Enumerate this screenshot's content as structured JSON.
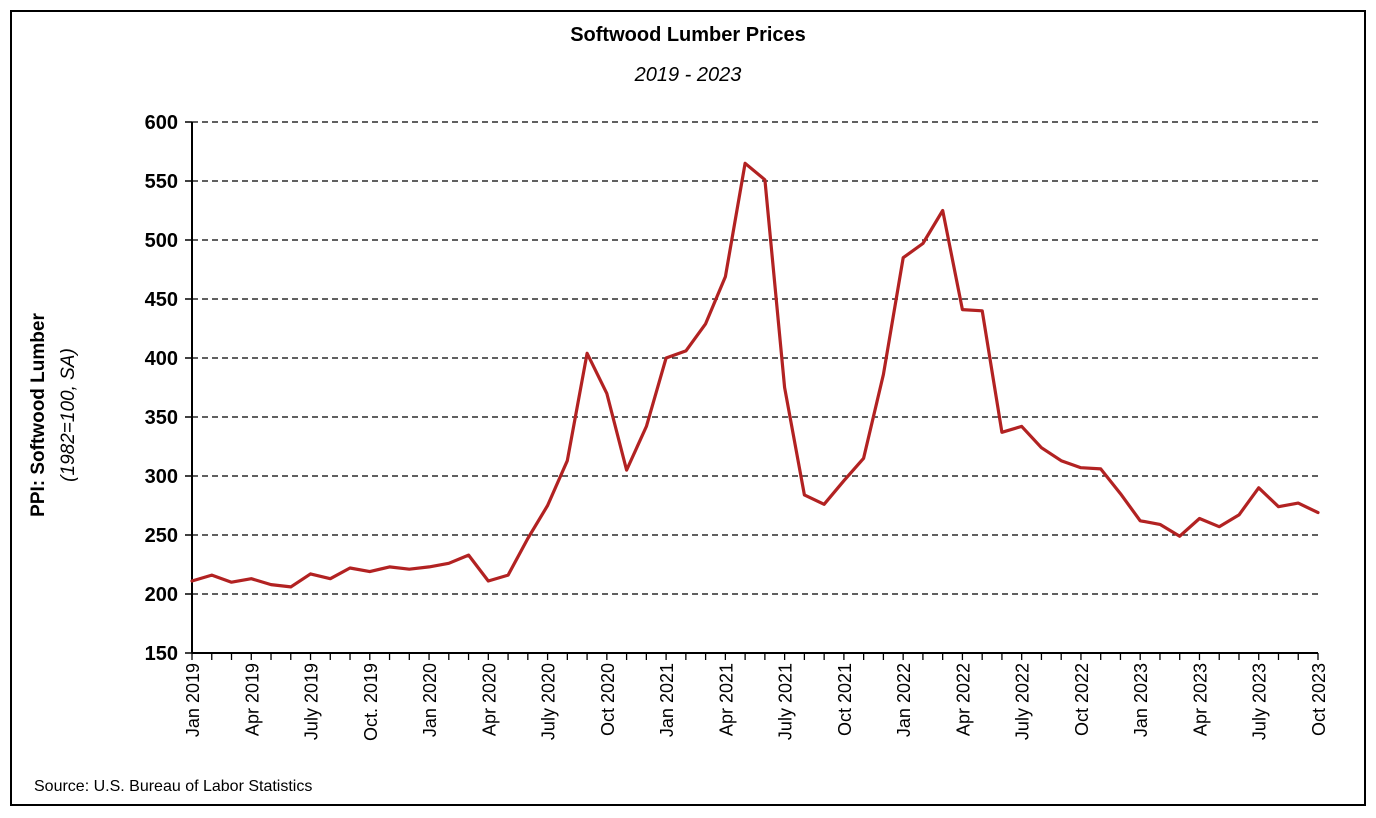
{
  "chart_data": {
    "type": "line",
    "title": "Softwood Lumber Prices",
    "subtitle": "2019 - 2023",
    "ylabel": "PPI: Softwood Lumber",
    "ylabel_sub": "(1982=100, SA)",
    "xlabel": "",
    "source": "Source: U.S. Bureau of Labor Statistics",
    "ylim": [
      150,
      600
    ],
    "yticks": [
      150,
      200,
      250,
      300,
      350,
      400,
      450,
      500,
      550,
      600
    ],
    "grid": true,
    "line_color": "#b22222",
    "x_tick_labels": [
      "Jan 2019",
      "Apr 2019",
      "July 2019",
      "Oct. 2019",
      "Jan 2020",
      "Apr 2020",
      "July 2020",
      "Oct 2020",
      "Jan 2021",
      "Apr 2021",
      "July 2021",
      "Oct 2021",
      "Jan 2022",
      "Apr 2022",
      "July 2022",
      "Oct 2022",
      "Jan 2023",
      "Apr 2023",
      "July 2023",
      "Oct 2023"
    ],
    "series": [
      {
        "x": [
          "2019-01",
          "2019-02",
          "2019-03",
          "2019-04",
          "2019-05",
          "2019-06",
          "2019-07",
          "2019-08",
          "2019-09",
          "2019-10",
          "2019-11",
          "2019-12",
          "2020-01",
          "2020-02",
          "2020-03",
          "2020-04",
          "2020-05",
          "2020-06",
          "2020-07",
          "2020-08",
          "2020-09",
          "2020-10",
          "2020-11",
          "2020-12",
          "2021-01",
          "2021-02",
          "2021-03",
          "2021-04",
          "2021-05",
          "2021-06",
          "2021-07",
          "2021-08",
          "2021-09",
          "2021-10",
          "2021-11",
          "2021-12",
          "2022-01",
          "2022-02",
          "2022-03",
          "2022-04",
          "2022-05",
          "2022-06",
          "2022-07",
          "2022-08",
          "2022-09",
          "2022-10",
          "2022-11",
          "2022-12",
          "2023-01",
          "2023-02",
          "2023-03",
          "2023-04",
          "2023-05",
          "2023-06",
          "2023-07",
          "2023-08",
          "2023-09",
          "2023-10"
        ],
        "values": [
          211,
          216,
          210,
          213,
          208,
          206,
          217,
          213,
          222,
          219,
          223,
          221,
          223,
          226,
          233,
          211,
          216,
          247,
          275,
          313,
          404,
          370,
          305,
          342,
          400,
          406,
          429,
          469,
          565,
          551,
          375,
          284,
          276,
          296,
          315,
          386,
          485,
          497,
          525,
          441,
          440,
          337,
          342,
          324,
          313,
          307,
          306,
          285,
          262,
          259,
          249,
          264,
          257,
          267,
          290,
          274,
          277,
          269
        ]
      }
    ]
  }
}
